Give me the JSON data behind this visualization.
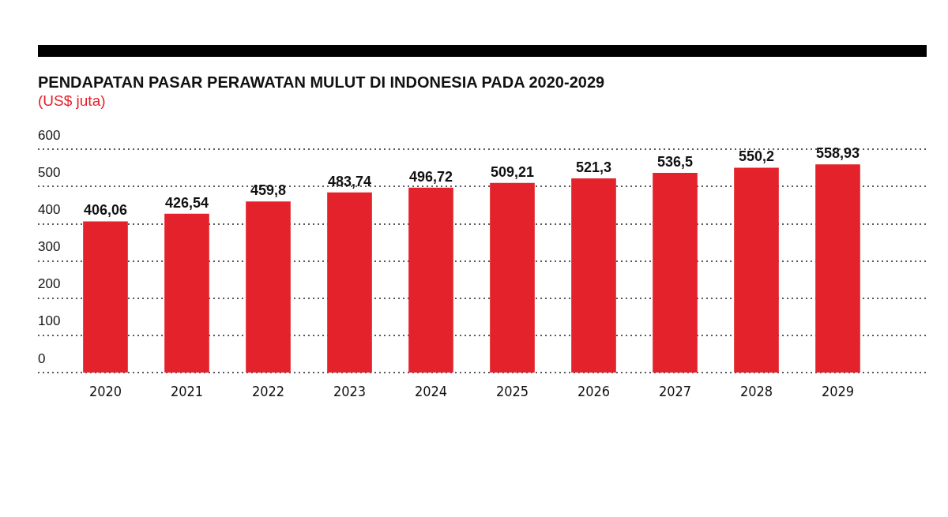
{
  "chart_data": {
    "type": "bar",
    "title": "PENDAPATAN PASAR PERAWATAN MULUT DI INDONESIA PADA 2020-2029",
    "subtitle": "(US$ juta)",
    "categories": [
      "2020",
      "2021",
      "2022",
      "2023",
      "2024",
      "2025",
      "2026",
      "2027",
      "2028",
      "2029"
    ],
    "values": [
      406.06,
      426.54,
      459.8,
      483.74,
      496.72,
      509.21,
      521.3,
      536.5,
      550.2,
      558.93
    ],
    "value_labels": [
      "406,06",
      "426,54",
      "459,8",
      "483,74",
      "496,72",
      "509,21",
      "521,3",
      "536,5",
      "550,2",
      "558,93"
    ],
    "color": "#e3222b",
    "ylim": [
      0,
      600
    ],
    "yticks": [
      0,
      100,
      200,
      300,
      400,
      500,
      600
    ],
    "grid": "y"
  }
}
